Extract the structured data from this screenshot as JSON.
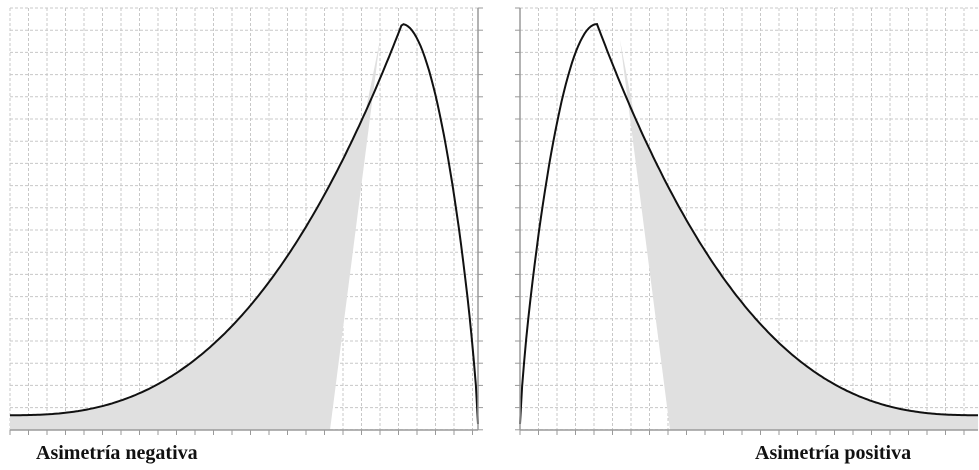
{
  "captions": {
    "left": "Asimetría negativa",
    "right": "Asimetría positiva"
  },
  "colors": {
    "grid": "#c8c8c8",
    "fill": "#e0e0e0",
    "curve": "#111111",
    "axis": "#9a9a9a"
  },
  "panels": [
    {
      "id": "left",
      "skew": "negative"
    },
    {
      "id": "right",
      "skew": "positive"
    }
  ]
}
